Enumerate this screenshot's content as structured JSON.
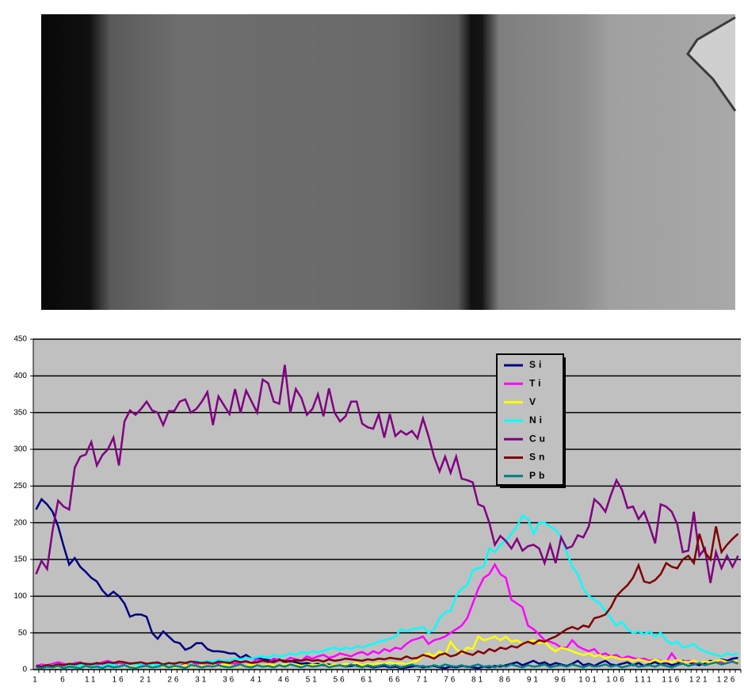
{
  "chart_data": {
    "type": "line",
    "categories": [
      "1",
      null,
      null,
      null,
      null,
      "6",
      null,
      null,
      null,
      null,
      "11",
      null,
      null,
      null,
      null,
      "16",
      null,
      null,
      null,
      null,
      "21",
      null,
      null,
      null,
      null,
      "26",
      null,
      null,
      null,
      null,
      "31",
      null,
      null,
      null,
      null,
      "36",
      null,
      null,
      null,
      null,
      "41",
      null,
      null,
      null,
      null,
      "46",
      null,
      null,
      null,
      null,
      "51",
      null,
      null,
      null,
      null,
      "56",
      null,
      null,
      null,
      null,
      "61",
      null,
      null,
      null,
      null,
      "66",
      null,
      null,
      null,
      null,
      "71",
      null,
      null,
      null,
      null,
      "76",
      null,
      null,
      null,
      null,
      "81",
      null,
      null,
      null,
      null,
      "86",
      null,
      null,
      null,
      null,
      "91",
      null,
      null,
      null,
      null,
      "96",
      null,
      null,
      null,
      null,
      "101",
      null,
      null,
      null,
      null,
      "106",
      null,
      null,
      null,
      null,
      "111",
      null,
      null,
      null,
      null,
      "116",
      null,
      null,
      null,
      null,
      "121",
      null,
      null,
      null,
      null,
      "126",
      null,
      null
    ],
    "ylim": [
      0,
      450
    ],
    "yticks": [
      0,
      50,
      100,
      150,
      200,
      250,
      300,
      350,
      400,
      450
    ],
    "grid": true,
    "series": [
      {
        "name": "Si",
        "color": "#000080",
        "values": [
          218,
          232,
          225,
          215,
          195,
          168,
          143,
          152,
          140,
          133,
          125,
          120,
          108,
          100,
          106,
          100,
          90,
          72,
          75,
          75,
          72,
          50,
          42,
          52,
          45,
          38,
          36,
          27,
          30,
          36,
          36,
          28,
          25,
          25,
          24,
          22,
          22,
          16,
          20,
          15,
          16,
          14,
          13,
          12,
          14,
          10,
          12,
          10,
          8,
          9,
          7,
          8,
          6,
          7,
          5,
          6,
          4,
          5,
          6,
          4,
          5,
          3,
          4,
          5,
          3,
          4,
          2,
          3,
          4,
          5,
          3,
          4,
          5,
          3,
          2,
          4,
          3,
          5,
          4,
          3,
          2,
          4,
          3,
          5,
          4,
          6,
          8,
          10,
          6,
          9,
          12,
          8,
          10,
          6,
          9,
          7,
          5,
          8,
          12,
          6,
          8,
          5,
          9,
          12,
          7,
          6,
          8,
          10,
          6,
          9,
          5,
          8,
          10,
          7,
          9,
          6,
          8,
          12,
          10,
          8,
          6,
          9,
          12,
          10,
          14,
          12,
          15,
          16
        ]
      },
      {
        "name": "Ti",
        "color": "#ff00ff",
        "values": [
          5,
          7,
          6,
          8,
          10,
          8,
          6,
          9,
          10,
          7,
          8,
          6,
          10,
          12,
          9,
          8,
          7,
          9,
          8,
          6,
          7,
          5,
          8,
          6,
          7,
          9,
          8,
          6,
          10,
          8,
          9,
          7,
          10,
          8,
          12,
          9,
          8,
          10,
          12,
          9,
          14,
          12,
          10,
          15,
          13,
          12,
          16,
          14,
          12,
          18,
          15,
          18,
          20,
          16,
          18,
          22,
          20,
          18,
          22,
          24,
          20,
          25,
          22,
          28,
          25,
          30,
          28,
          35,
          40,
          42,
          45,
          35,
          40,
          42,
          45,
          50,
          55,
          60,
          70,
          90,
          110,
          125,
          130,
          143,
          130,
          125,
          95,
          90,
          85,
          60,
          55,
          48,
          40,
          38,
          35,
          30,
          30,
          40,
          32,
          28,
          25,
          28,
          20,
          22,
          18,
          20,
          15,
          18,
          16,
          14,
          15,
          12,
          14,
          12,
          10,
          22,
          12,
          10,
          12,
          10,
          9,
          11,
          10,
          12,
          10,
          9,
          12,
          10
        ]
      },
      {
        "name": "V",
        "color": "#ffff00",
        "values": [
          3,
          4,
          5,
          3,
          4,
          5,
          4,
          3,
          5,
          4,
          5,
          4,
          3,
          5,
          4,
          6,
          5,
          4,
          3,
          5,
          4,
          5,
          6,
          4,
          5,
          3,
          4,
          6,
          5,
          4,
          5,
          6,
          4,
          5,
          7,
          5,
          4,
          6,
          5,
          7,
          6,
          5,
          7,
          6,
          5,
          8,
          6,
          7,
          5,
          6,
          7,
          6,
          8,
          5,
          7,
          6,
          8,
          7,
          9,
          6,
          8,
          7,
          9,
          8,
          10,
          8,
          9,
          7,
          10,
          12,
          20,
          22,
          18,
          25,
          20,
          38,
          28,
          22,
          30,
          28,
          45,
          40,
          42,
          45,
          40,
          45,
          38,
          40,
          35,
          38,
          40,
          36,
          38,
          30,
          25,
          30,
          28,
          25,
          22,
          20,
          22,
          18,
          20,
          15,
          18,
          16,
          14,
          15,
          12,
          14,
          12,
          10,
          14,
          11,
          12,
          10,
          13,
          11,
          10,
          12,
          9,
          11,
          10,
          12,
          13,
          10,
          11,
          12
        ]
      },
      {
        "name": "Ni",
        "color": "#00ffff",
        "values": [
          4,
          5,
          3,
          6,
          5,
          4,
          7,
          5,
          6,
          5,
          6,
          5,
          4,
          7,
          6,
          5,
          6,
          8,
          7,
          6,
          5,
          7,
          6,
          8,
          7,
          9,
          8,
          10,
          9,
          12,
          10,
          12,
          11,
          14,
          12,
          13,
          15,
          14,
          16,
          15,
          17,
          18,
          16,
          20,
          18,
          19,
          22,
          20,
          24,
          22,
          25,
          23,
          26,
          28,
          30,
          27,
          30,
          28,
          32,
          30,
          33,
          35,
          38,
          40,
          42,
          45,
          55,
          52,
          55,
          56,
          58,
          50,
          55,
          70,
          78,
          80,
          100,
          110,
          115,
          135,
          138,
          140,
          165,
          160,
          170,
          175,
          185,
          195,
          210,
          205,
          185,
          200,
          200,
          195,
          190,
          180,
          160,
          140,
          130,
          110,
          100,
          95,
          90,
          80,
          70,
          60,
          65,
          55,
          50,
          52,
          48,
          52,
          45,
          50,
          40,
          35,
          38,
          30,
          32,
          35,
          28,
          25,
          22,
          20,
          18,
          22,
          20,
          22
        ]
      },
      {
        "name": "Cu",
        "color": "#800080",
        "values": [
          130,
          148,
          137,
          190,
          230,
          222,
          218,
          275,
          290,
          293,
          310,
          278,
          292,
          300,
          316,
          278,
          338,
          353,
          347,
          355,
          365,
          353,
          350,
          333,
          352,
          352,
          365,
          368,
          350,
          355,
          365,
          378,
          333,
          372,
          360,
          348,
          382,
          350,
          380,
          365,
          350,
          395,
          390,
          365,
          362,
          415,
          350,
          382,
          370,
          347,
          355,
          375,
          345,
          383,
          350,
          338,
          345,
          365,
          365,
          335,
          330,
          328,
          348,
          316,
          348,
          318,
          325,
          320,
          325,
          315,
          342,
          318,
          290,
          270,
          290,
          268,
          290,
          260,
          258,
          255,
          225,
          222,
          200,
          170,
          182,
          175,
          165,
          178,
          162,
          168,
          170,
          165,
          145,
          170,
          145,
          180,
          165,
          168,
          183,
          180,
          195,
          232,
          225,
          215,
          238,
          258,
          245,
          220,
          222,
          205,
          215,
          195,
          172,
          225,
          222,
          215,
          198,
          160,
          162,
          215,
          155,
          165,
          118,
          160,
          138,
          155,
          140,
          155
        ]
      },
      {
        "name": "Sn",
        "color": "#800000",
        "values": [
          5,
          4,
          6,
          5,
          7,
          6,
          8,
          7,
          9,
          8,
          7,
          9,
          8,
          10,
          9,
          11,
          10,
          8,
          9,
          10,
          8,
          9,
          10,
          7,
          9,
          8,
          10,
          9,
          11,
          10,
          9,
          10,
          8,
          11,
          10,
          9,
          12,
          10,
          11,
          9,
          10,
          12,
          11,
          10,
          13,
          12,
          11,
          13,
          12,
          14,
          12,
          13,
          11,
          14,
          12,
          13,
          15,
          14,
          13,
          12,
          14,
          13,
          15,
          14,
          16,
          15,
          14,
          18,
          15,
          16,
          20,
          18,
          15,
          20,
          22,
          18,
          20,
          25,
          22,
          20,
          25,
          22,
          28,
          25,
          30,
          28,
          32,
          30,
          35,
          38,
          35,
          40,
          38,
          42,
          45,
          50,
          55,
          58,
          55,
          60,
          58,
          70,
          72,
          75,
          85,
          100,
          108,
          115,
          125,
          142,
          120,
          118,
          122,
          130,
          145,
          140,
          138,
          150,
          155,
          145,
          185,
          160,
          150,
          195,
          160,
          170,
          178,
          185
        ]
      },
      {
        "name": "Pb",
        "color": "#008080",
        "values": [
          3,
          2,
          4,
          3,
          5,
          2,
          4,
          3,
          2,
          5,
          3,
          4,
          2,
          5,
          3,
          4,
          6,
          3,
          2,
          4,
          5,
          3,
          4,
          6,
          3,
          5,
          4,
          2,
          6,
          5,
          3,
          5,
          4,
          6,
          4,
          3,
          5,
          7,
          4,
          3,
          6,
          4,
          5,
          3,
          6,
          4,
          7,
          5,
          3,
          6,
          4,
          5,
          7,
          3,
          5,
          6,
          4,
          7,
          5,
          3,
          6,
          4,
          5,
          7,
          4,
          6,
          3,
          5,
          7,
          4,
          5,
          3,
          6,
          4,
          7,
          5,
          4,
          6,
          3,
          5,
          7,
          4,
          5,
          3,
          6,
          4,
          7,
          5,
          3,
          6,
          4,
          5,
          7,
          3,
          5,
          6,
          4,
          7,
          5,
          3,
          6,
          4,
          5,
          7,
          4,
          6,
          3,
          5,
          7,
          4,
          5,
          6,
          4,
          7,
          5,
          3,
          6,
          8,
          5,
          7,
          9,
          6,
          8,
          10,
          7,
          9,
          11,
          8
        ]
      }
    ]
  }
}
